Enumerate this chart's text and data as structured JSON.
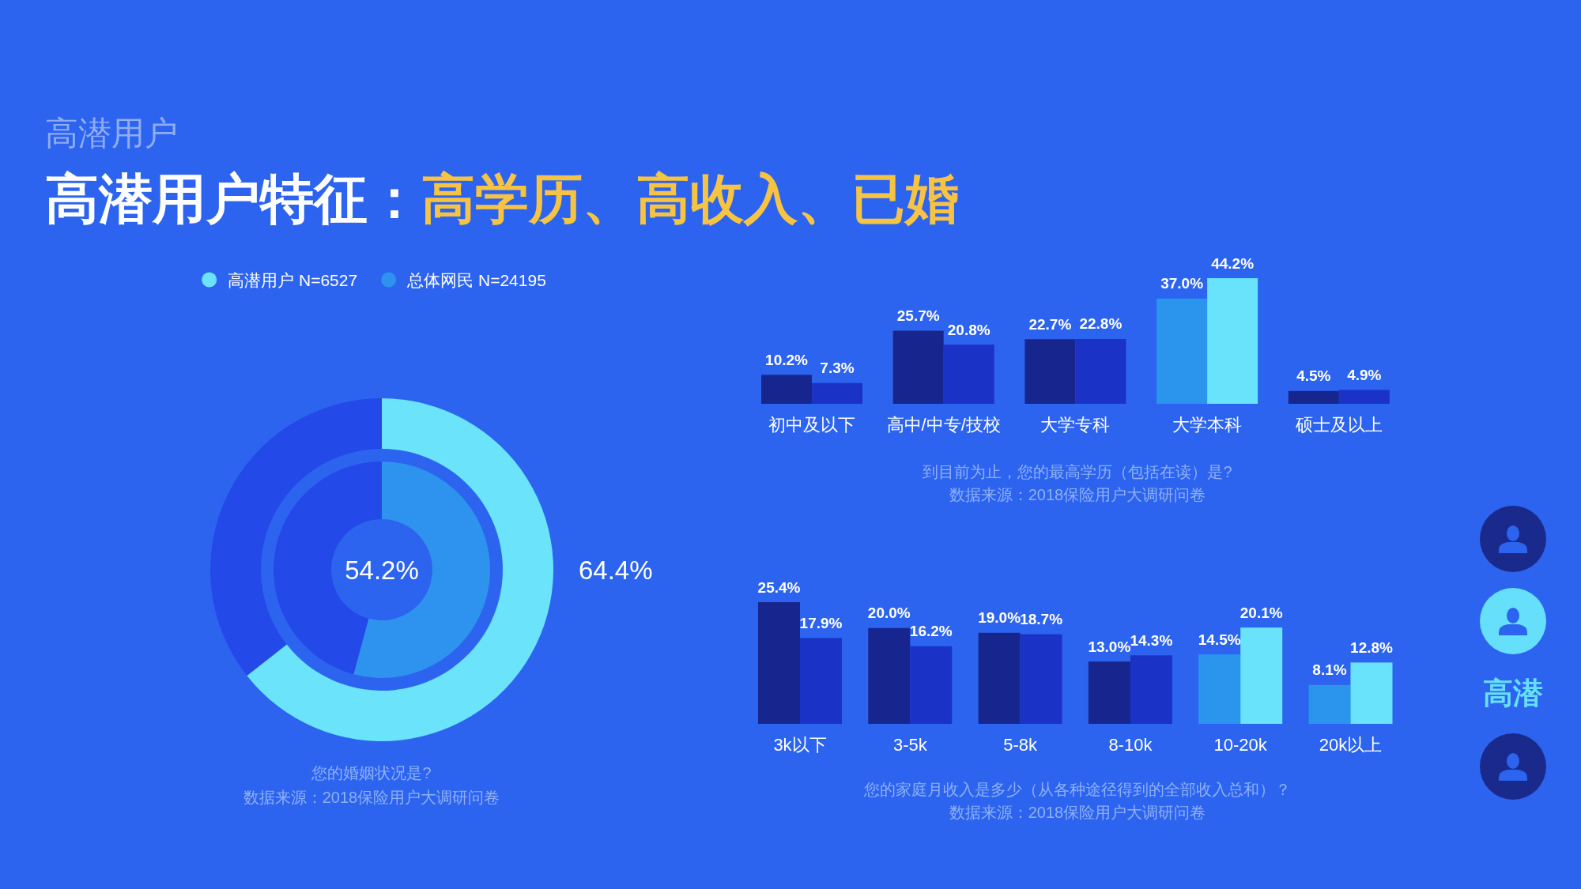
{
  "chart_data": [
    {
      "type": "donut",
      "subtitle": "高潜用户",
      "title": "高潜用户特征：高学历、高收入、已婚",
      "categories": [
        null,
        null
      ],
      "series": [
        {
          "name": "高潜用户 N=6527",
          "colors": [
            "#6ae3fb",
            "#2349e8"
          ],
          "values": [
            64.4,
            35.6
          ],
          "value_labels": [
            "64.4%",
            null
          ]
        },
        {
          "name": "总体网民 N=24195",
          "colors": [
            "#2d93ee",
            "#2349e8"
          ],
          "values": [
            54.2,
            45.8
          ],
          "value_labels": [
            "54.2%",
            null
          ]
        }
      ],
      "legend": "top",
      "annotations": [
        "您的婚姻状况是?",
        "数据来源：2018保险用户大调研问卷"
      ]
    },
    {
      "type": "bar",
      "categories": [
        "初中及以下",
        "高中/中专/技校",
        "大学专科",
        "大学本科",
        "硕士及以上"
      ],
      "series": [
        {
          "values": [
            10.2,
            25.7,
            22.7,
            37.0,
            4.5
          ],
          "colors": [
            "#17268f",
            "#17268f",
            "#17268f",
            "#2b95ee",
            "#17268f"
          ],
          "value_labels": [
            "10.2%",
            "25.7%",
            "22.7%",
            "37.0%",
            "4.5%"
          ]
        },
        {
          "values": [
            7.3,
            20.8,
            22.8,
            44.2,
            4.9
          ],
          "colors": [
            "#1b32c6",
            "#1b32c6",
            "#1b32c6",
            "#68e3fb",
            "#1b32c6"
          ],
          "value_labels": [
            "7.3%",
            "20.8%",
            "22.8%",
            "44.2%",
            "4.9%"
          ]
        }
      ],
      "annotations": [
        "到目前为止，您的最高学历（包括在读）是?",
        "数据来源：2018保险用户大调研问卷"
      ]
    },
    {
      "type": "bar",
      "categories": [
        "3k以下",
        "3-5k",
        "5-8k",
        "8-10k",
        "10-20k",
        "20k以上"
      ],
      "series": [
        {
          "values": [
            25.4,
            20.0,
            19.0,
            13.0,
            14.5,
            8.1
          ],
          "colors": [
            "#17268f",
            "#17268f",
            "#17268f",
            "#17268f",
            "#2b95ee",
            "#2b95ee"
          ],
          "value_labels": [
            "25.4%",
            "20.0%",
            "19.0%",
            "13.0%",
            "14.5%",
            "8.1%"
          ]
        },
        {
          "values": [
            17.9,
            16.2,
            18.7,
            14.3,
            20.1,
            12.8
          ],
          "colors": [
            "#1b32c6",
            "#1b32c6",
            "#1b32c6",
            "#1b32c6",
            "#68e3fb",
            "#68e3fb"
          ],
          "value_labels": [
            "17.9%",
            "16.2%",
            "18.7%",
            "14.3%",
            "20.1%",
            "12.8%"
          ]
        }
      ],
      "annotations": [
        "您的家庭月收入是多少（从各种途径得到的全部收入总和）？",
        "数据来源：2018保险用户大调研问卷"
      ]
    },
    {
      "type": "other",
      "annotations": [
        "高潜"
      ]
    }
  ]
}
